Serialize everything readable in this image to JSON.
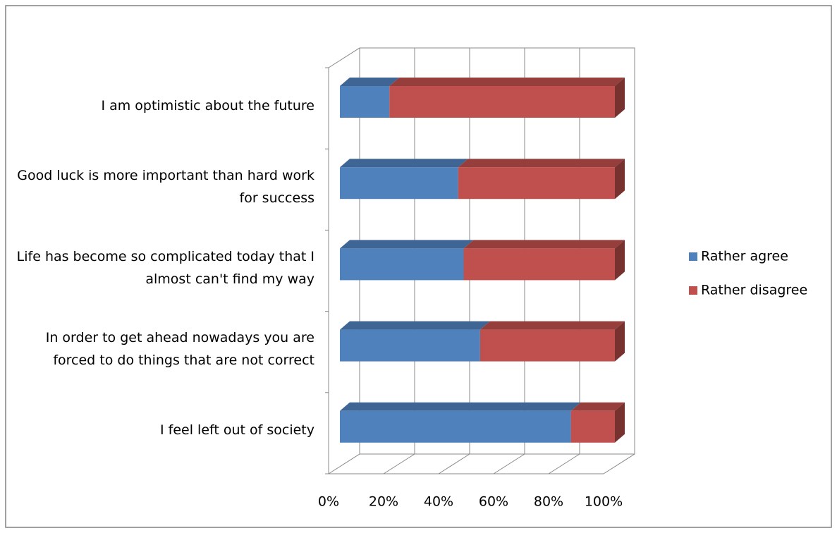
{
  "chart_data": {
    "type": "stacked-bar-3d",
    "categories": [
      "I am optimistic about the future",
      "Good luck is more important than hard work for success",
      "Life has become so complicated today that I almost can't find my way",
      "In order to get ahead nowadays you are forced to do things that are not correct",
      "I feel left out of society"
    ],
    "series": [
      {
        "name": "Rather agree",
        "color": "#4f81bd",
        "values": [
          18,
          43,
          45,
          51,
          84
        ]
      },
      {
        "name": "Rather disagree",
        "color": "#c0504d",
        "values": [
          82,
          57,
          55,
          49,
          16
        ]
      }
    ],
    "xlim": [
      0,
      100
    ],
    "xticks": [
      {
        "value": 0,
        "label": "0%"
      },
      {
        "value": 20,
        "label": "20%"
      },
      {
        "value": 40,
        "label": "40%"
      },
      {
        "value": 60,
        "label": "60%"
      },
      {
        "value": 80,
        "label": "80%"
      },
      {
        "value": 100,
        "label": "100%"
      }
    ],
    "grid": true,
    "legend": "right"
  }
}
